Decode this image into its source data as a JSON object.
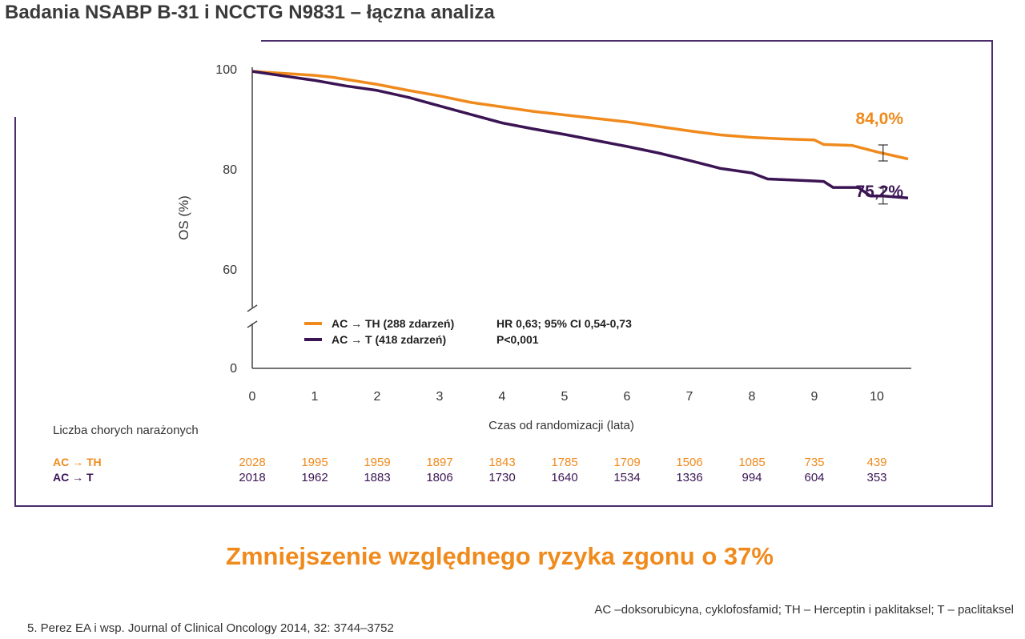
{
  "header": {
    "title": "Badania NSABP B-31 i NCCTG N9831 – łączna analiza"
  },
  "chart_data": {
    "type": "line",
    "xlabel": "Czas od randomizacji (lata)",
    "ylabel": "OS (%)",
    "xlim": [
      0,
      10.5
    ],
    "x_ticks": [
      "0",
      "1",
      "2",
      "3",
      "4",
      "5",
      "6",
      "7",
      "8",
      "9",
      "10"
    ],
    "y_ticks": [
      {
        "value": 100,
        "label": "100"
      },
      {
        "value": 80,
        "label": "80"
      },
      {
        "value": 60,
        "label": "60"
      },
      {
        "value": 0,
        "label": "0"
      }
    ],
    "y_axis_break": true,
    "grid": false,
    "legend_position": "bottom-center",
    "series": [
      {
        "name": "AC → TH (288 zdarzeń)",
        "color": "#f08a1c",
        "points": [
          [
            0,
            99.5
          ],
          [
            0.5,
            99.1
          ],
          [
            1,
            98.7
          ],
          [
            1.3,
            98.3
          ],
          [
            2,
            96.9
          ],
          [
            2.5,
            95.7
          ],
          [
            3,
            94.6
          ],
          [
            3.5,
            93.3
          ],
          [
            4,
            92.4
          ],
          [
            4.5,
            91.5
          ],
          [
            5,
            90.8
          ],
          [
            5.5,
            90.1
          ],
          [
            6,
            89.4
          ],
          [
            6.5,
            88.5
          ],
          [
            7,
            87.6
          ],
          [
            7.5,
            86.8
          ],
          [
            8,
            86.3
          ],
          [
            8.5,
            86.0
          ],
          [
            9,
            85.8
          ],
          [
            9.15,
            84.9
          ],
          [
            9.6,
            84.7
          ],
          [
            10,
            83.4
          ],
          [
            10.5,
            82.0
          ]
        ],
        "end_label": "84,0%",
        "end_value": 84.0,
        "error_bar": {
          "x": 10.1,
          "low": 81.6,
          "high": 84.8
        }
      },
      {
        "name": "AC → T (418 zdarzeń)",
        "color": "#3b1454",
        "points": [
          [
            0,
            99.5
          ],
          [
            0.5,
            98.6
          ],
          [
            1,
            97.7
          ],
          [
            1.5,
            96.6
          ],
          [
            2,
            95.7
          ],
          [
            2.5,
            94.3
          ],
          [
            3,
            92.6
          ],
          [
            3.5,
            90.9
          ],
          [
            4,
            89.2
          ],
          [
            4.5,
            88.0
          ],
          [
            5,
            86.9
          ],
          [
            5.5,
            85.7
          ],
          [
            6,
            84.5
          ],
          [
            6.5,
            83.2
          ],
          [
            7,
            81.7
          ],
          [
            7.5,
            80.1
          ],
          [
            8,
            79.2
          ],
          [
            8.25,
            78.0
          ],
          [
            9,
            77.6
          ],
          [
            9.15,
            77.5
          ],
          [
            9.3,
            76.3
          ],
          [
            9.7,
            76.3
          ],
          [
            9.9,
            74.6
          ],
          [
            10.1,
            74.6
          ],
          [
            10.5,
            74.2
          ]
        ],
        "end_label": "75,2%",
        "end_value": 75.2,
        "error_bar": {
          "x": 10.1,
          "low": 73.0,
          "high": 76.3
        }
      }
    ],
    "stats": [
      "HR 0,63; 95% CI 0,54-0,73",
      "P<0,001"
    ]
  },
  "risk_table": {
    "title": "Liczba chorych narażonych",
    "rows": [
      {
        "label": "AC → TH",
        "color": "#f08a1c",
        "values": [
          "2028",
          "1995",
          "1959",
          "1897",
          "1843",
          "1785",
          "1709",
          "1506",
          "1085",
          "735",
          "439"
        ]
      },
      {
        "label": "AC → T",
        "color": "#3b1454",
        "values": [
          "2018",
          "1962",
          "1883",
          "1806",
          "1730",
          "1640",
          "1534",
          "1336",
          "994",
          "604",
          "353"
        ]
      }
    ]
  },
  "highlight": "Zmniejszenie względnego ryzyka zgonu o 37%",
  "footnote": "AC –doksorubicyna, cyklofosfamid; TH – Herceptin  i  paklitaksel; T – paclitaksel",
  "reference": "5. Perez EA i wsp. Journal of Clinical Oncology 2014, 32: 3744–3752"
}
